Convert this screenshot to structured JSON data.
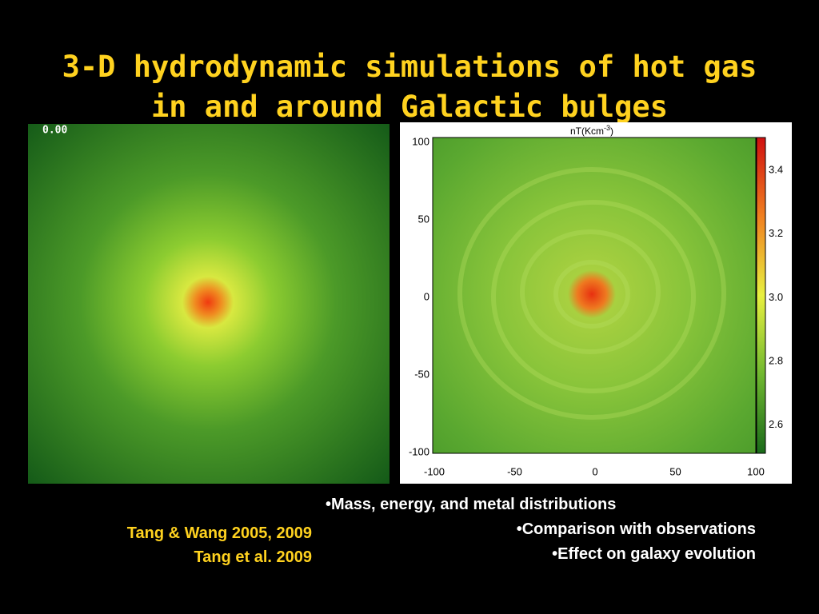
{
  "title": {
    "line1": "3-D hydrodynamic simulations of hot gas",
    "line2": "in and around Galactic bulges"
  },
  "left_panel": {
    "time_label": "0.00"
  },
  "right_panel": {
    "colorbar_label": "nT(Kcm",
    "colorbar_label_sup": "-3",
    "colorbar_label_end": ")",
    "x_ticks": [
      "-100",
      "-50",
      "0",
      "50",
      "100"
    ],
    "y_ticks": [
      "100",
      "50",
      "0",
      "-50",
      "-100"
    ],
    "colorbar_ticks": [
      "3.4",
      "3.2",
      "3.0",
      "2.8",
      "2.6"
    ]
  },
  "bullets": [
    "•Mass, energy, and metal distributions",
    "•Comparison with observations",
    "•Effect on galaxy evolution"
  ],
  "references": [
    "Tang & Wang 2005, 2009",
    "Tang et al. 2009"
  ]
}
